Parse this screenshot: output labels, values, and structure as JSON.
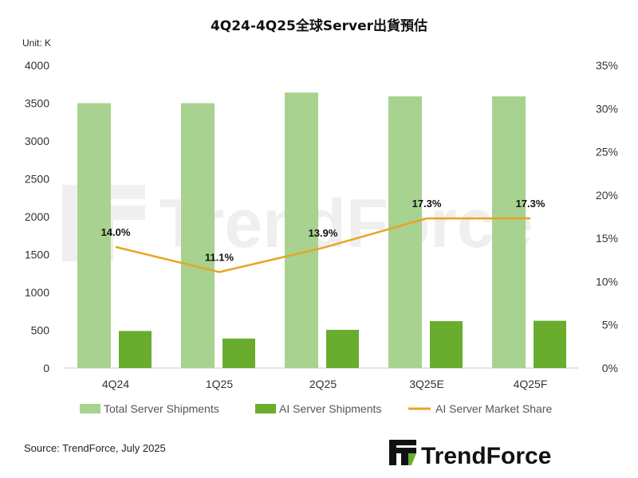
{
  "colors": {
    "total_bar": "#a8d28f",
    "ai_bar": "#6aad2e",
    "share_line": "#e8a424",
    "axis": "#c8c8c8"
  },
  "logo": {
    "icon": "trendforce-logo-icon",
    "text": "TrendForce"
  },
  "watermark": {
    "text": "TrendForce"
  },
  "source": "Source: TrendForce, July 2025",
  "chart_data": {
    "type": "bar",
    "title": "4Q24-4Q25全球Server出貨預估",
    "unit_label": "Unit: K",
    "categories": [
      "4Q24",
      "1Q25",
      "2Q25",
      "3Q25E",
      "4Q25F"
    ],
    "series": [
      {
        "name": "Total Server Shipments",
        "type": "bar",
        "axis": "left",
        "values": [
          3500,
          3500,
          3640,
          3590,
          3590
        ]
      },
      {
        "name": "AI Server Shipments",
        "type": "bar",
        "axis": "left",
        "values": [
          490,
          390,
          505,
          620,
          625
        ]
      },
      {
        "name": "AI Server Market Share",
        "type": "line",
        "axis": "right",
        "values": [
          14.0,
          11.1,
          13.9,
          17.3,
          17.3
        ],
        "labels": [
          "14.0%",
          "11.1%",
          "13.9%",
          "17.3%",
          "17.3%"
        ]
      }
    ],
    "y_left": {
      "range": [
        0,
        4000
      ],
      "ticks": [
        "0",
        "500",
        "1000",
        "1500",
        "2000",
        "2500",
        "3000",
        "3500",
        "4000"
      ]
    },
    "y_right": {
      "range": [
        0,
        35
      ],
      "ticks": [
        "0%",
        "5%",
        "10%",
        "15%",
        "20%",
        "25%",
        "30%",
        "35%"
      ]
    },
    "grid": false,
    "legend_position": "bottom"
  }
}
